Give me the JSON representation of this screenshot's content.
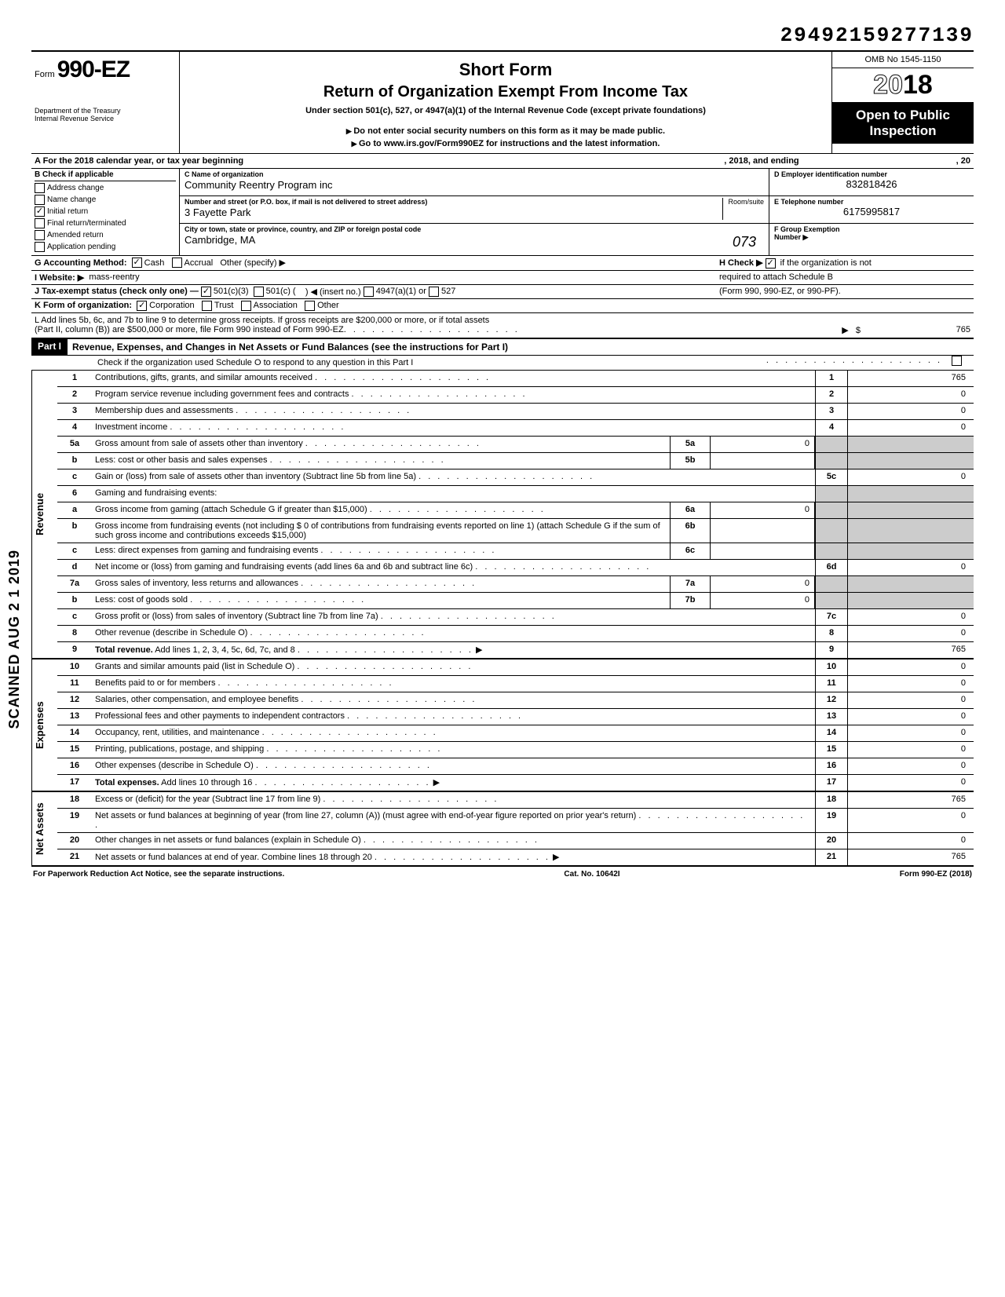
{
  "top_number": "29492159277139",
  "scanned_stamp": "SCANNED AUG 2 1 2019",
  "header": {
    "form_prefix": "Form",
    "form_number": "990-EZ",
    "dept1": "Department of the Treasury",
    "dept2": "Internal Revenue Service",
    "short_form": "Short Form",
    "return_title": "Return of Organization Exempt From Income Tax",
    "under_section": "Under section 501(c), 527, or 4947(a)(1) of the Internal Revenue Code (except private foundations)",
    "no_ssn": "Do not enter social security numbers on this form as it may be made public.",
    "goto": "Go to www.irs.gov/Form990EZ for instructions and the latest information.",
    "omb": "OMB No 1545-1150",
    "year_prefix": "20",
    "year_bold": "18",
    "open1": "Open to Public",
    "open2": "Inspection"
  },
  "row_a": {
    "label_a": "A For the 2018 calendar year, or tax year beginning",
    "mid": ", 2018, and ending",
    "end": ", 20"
  },
  "col_b": {
    "header": "B  Check if applicable",
    "items": [
      "Address change",
      "Name change",
      "Initial return",
      "Final return/terminated",
      "Amended return",
      "Application pending"
    ],
    "checked_index": 2
  },
  "org": {
    "c_label": "C  Name of organization",
    "c_value": "Community Reentry Program inc",
    "street_label": "Number and street (or P.O. box, if mail is not delivered to street address)",
    "street_value": "3 Fayette Park",
    "room_label": "Room/suite",
    "city_label": "City or town, state or province, country, and ZIP or foreign postal code",
    "city_value": "Cambridge, MA",
    "city_hand": "073"
  },
  "right_col": {
    "d_label": "D Employer identification number",
    "d_value": "832818426",
    "e_label": "E Telephone number",
    "e_value": "6175995817",
    "f_label": "F Group Exemption",
    "f_label2": "Number ▶"
  },
  "row_g": {
    "g": "G  Accounting Method:",
    "cash": "Cash",
    "accrual": "Accrual",
    "other": "Other (specify) ▶",
    "h1": "H Check ▶",
    "h2": "if the organization is not",
    "h3": "required to attach Schedule B",
    "h4": "(Form 990, 990-EZ, or 990-PF)."
  },
  "row_i": {
    "i": "I  Website: ▶",
    "i_val": "mass-reentry"
  },
  "row_j": {
    "j": "J  Tax-exempt status (check only one) —",
    "j1": "501(c)(3)",
    "j2": "501(c) (",
    "j3": ") ◀ (insert no.)",
    "j4": "4947(a)(1) or",
    "j5": "527"
  },
  "row_k": {
    "k": "K  Form of organization:",
    "k1": "Corporation",
    "k2": "Trust",
    "k3": "Association",
    "k4": "Other"
  },
  "row_l": {
    "l1": "L  Add lines 5b, 6c, and 7b to line 9 to determine gross receipts. If gross receipts are $200,000 or more, or if total assets",
    "l2": "(Part II, column (B)) are $500,000 or more, file Form 990 instead of Form 990-EZ",
    "l_val": "765"
  },
  "part1": {
    "label": "Part I",
    "title": "Revenue, Expenses, and Changes in Net Assets or Fund Balances (see the instructions for Part I)",
    "check_line": "Check if the organization used Schedule O to respond to any question in this Part I"
  },
  "sections": {
    "revenue": "Revenue",
    "expenses": "Expenses",
    "netassets": "Net Assets"
  },
  "lines": {
    "l1": {
      "n": "1",
      "d": "Contributions, gifts, grants, and similar amounts received",
      "en": "1",
      "ev": "765"
    },
    "l2": {
      "n": "2",
      "d": "Program service revenue including government fees and contracts",
      "en": "2",
      "ev": "0"
    },
    "l3": {
      "n": "3",
      "d": "Membership dues and assessments",
      "en": "3",
      "ev": "0"
    },
    "l4": {
      "n": "4",
      "d": "Investment income",
      "en": "4",
      "ev": "0"
    },
    "l5a": {
      "n": "5a",
      "d": "Gross amount from sale of assets other than inventory",
      "ib": "5a",
      "iv": "0"
    },
    "l5b": {
      "n": "b",
      "d": "Less: cost or other basis and sales expenses",
      "ib": "5b",
      "iv": ""
    },
    "l5c": {
      "n": "c",
      "d": "Gain or (loss) from sale of assets other than inventory (Subtract line 5b from line 5a)",
      "en": "5c",
      "ev": "0"
    },
    "l6": {
      "n": "6",
      "d": "Gaming and fundraising events:"
    },
    "l6a": {
      "n": "a",
      "d": "Gross income from gaming (attach Schedule G if greater than $15,000)",
      "ib": "6a",
      "iv": "0"
    },
    "l6b": {
      "n": "b",
      "d": "Gross income from fundraising events (not including  $                     0 of contributions from fundraising events reported on line 1) (attach Schedule G if the sum of such gross income and contributions exceeds $15,000)",
      "ib": "6b",
      "iv": ""
    },
    "l6c": {
      "n": "c",
      "d": "Less: direct expenses from gaming and fundraising events",
      "ib": "6c",
      "iv": ""
    },
    "l6d": {
      "n": "d",
      "d": "Net income or (loss) from gaming and fundraising events (add lines 6a and 6b and subtract line 6c)",
      "en": "6d",
      "ev": "0"
    },
    "l7a": {
      "n": "7a",
      "d": "Gross sales of inventory, less returns and allowances",
      "ib": "7a",
      "iv": "0"
    },
    "l7b": {
      "n": "b",
      "d": "Less: cost of goods sold",
      "ib": "7b",
      "iv": "0"
    },
    "l7c": {
      "n": "c",
      "d": "Gross profit or (loss) from sales of inventory (Subtract line 7b from line 7a)",
      "en": "7c",
      "ev": "0"
    },
    "l8": {
      "n": "8",
      "d": "Other revenue (describe in Schedule O)",
      "en": "8",
      "ev": "0"
    },
    "l9": {
      "n": "9",
      "d": "Total revenue. Add lines 1, 2, 3, 4, 5c, 6d, 7c, and 8",
      "en": "9",
      "ev": "765",
      "bold": true
    },
    "l10": {
      "n": "10",
      "d": "Grants and similar amounts paid (list in Schedule O)",
      "en": "10",
      "ev": "0"
    },
    "l11": {
      "n": "11",
      "d": "Benefits paid to or for members",
      "en": "11",
      "ev": "0"
    },
    "l12": {
      "n": "12",
      "d": "Salaries, other compensation, and employee benefits",
      "en": "12",
      "ev": "0"
    },
    "l13": {
      "n": "13",
      "d": "Professional fees and other payments to independent contractors",
      "en": "13",
      "ev": "0"
    },
    "l14": {
      "n": "14",
      "d": "Occupancy, rent, utilities, and maintenance",
      "en": "14",
      "ev": "0"
    },
    "l15": {
      "n": "15",
      "d": "Printing, publications, postage, and shipping",
      "en": "15",
      "ev": "0"
    },
    "l16": {
      "n": "16",
      "d": "Other expenses (describe in Schedule O)",
      "en": "16",
      "ev": "0"
    },
    "l17": {
      "n": "17",
      "d": "Total expenses. Add lines 10 through 16",
      "en": "17",
      "ev": "0",
      "bold": true
    },
    "l18": {
      "n": "18",
      "d": "Excess or (deficit) for the year (Subtract line 17 from line 9)",
      "en": "18",
      "ev": "765"
    },
    "l19": {
      "n": "19",
      "d": "Net assets or fund balances at beginning of year (from line 27, column (A)) (must agree with end-of-year figure reported on prior year's return)",
      "en": "19",
      "ev": "0"
    },
    "l20": {
      "n": "20",
      "d": "Other changes in net assets or fund balances (explain in Schedule O)",
      "en": "20",
      "ev": "0"
    },
    "l21": {
      "n": "21",
      "d": "Net assets or fund balances at end of year. Combine lines 18 through 20",
      "en": "21",
      "ev": "765"
    }
  },
  "footer": {
    "left": "For Paperwork Reduction Act Notice, see the separate instructions.",
    "mid": "Cat. No. 10642I",
    "right": "Form 990-EZ (2018)"
  }
}
